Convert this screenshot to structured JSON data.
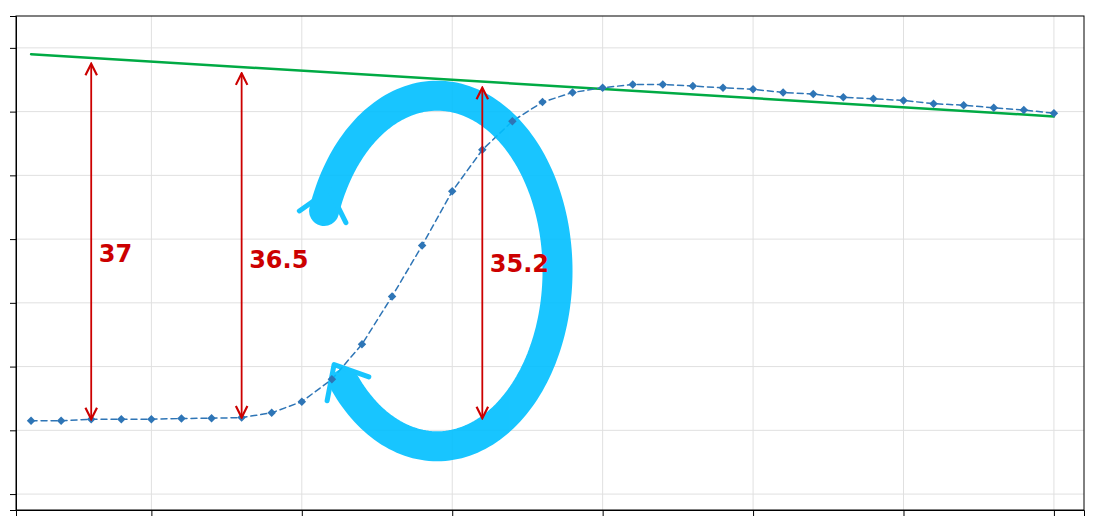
{
  "chart_data": {
    "type": "line",
    "xlim": [
      0.5,
      36.0
    ],
    "ylim": [
      -2.5,
      13.0
    ],
    "xticks": [
      5,
      10,
      15,
      20,
      25,
      30,
      35
    ],
    "yticks": [
      -2,
      0,
      2,
      4,
      6,
      8,
      10,
      12
    ],
    "grid": true,
    "tick_labels": false,
    "series": [
      {
        "x": [
          1,
          35
        ],
        "values": [
          11.8,
          9.85
        ],
        "color": "#00aa44",
        "line_style": "solid",
        "marker": "none"
      },
      {
        "x": [
          1,
          2,
          3,
          4,
          5,
          6,
          7,
          8,
          9,
          10,
          11,
          12,
          13,
          14,
          15,
          16,
          17,
          18,
          19,
          20,
          21,
          22,
          23,
          24,
          25,
          26,
          27,
          28,
          29,
          30,
          31,
          32,
          33,
          34,
          35
        ],
        "values": [
          0.3,
          0.3,
          0.35,
          0.35,
          0.35,
          0.37,
          0.38,
          0.4,
          0.55,
          0.9,
          1.6,
          2.7,
          4.2,
          5.8,
          7.5,
          8.8,
          9.7,
          10.3,
          10.6,
          10.75,
          10.85,
          10.85,
          10.8,
          10.75,
          10.7,
          10.6,
          10.55,
          10.45,
          10.4,
          10.35,
          10.25,
          10.2,
          10.12,
          10.05,
          9.95
        ],
        "color": "#2e75b6",
        "line_style": "dashed",
        "marker": "diamond"
      }
    ],
    "annotations": [
      {
        "text": "37",
        "x": 3,
        "y_top": 11.5,
        "y_bottom": 0.35,
        "label_x": 3.25,
        "label_y": 5.5,
        "color": "#cc0000"
      },
      {
        "text": "36.5",
        "x": 8,
        "y_top": 11.2,
        "y_bottom": 0.4,
        "label_x": 8.25,
        "label_y": 5.3,
        "color": "#cc0000"
      },
      {
        "text": "35.2",
        "x": 16,
        "y_top": 10.75,
        "y_bottom": 0.38,
        "label_x": 16.25,
        "label_y": 5.2,
        "color": "#cc0000"
      }
    ],
    "arc": {
      "cx": 14.5,
      "cy": 5.0,
      "width": 8.0,
      "height": 11.0,
      "theta1": 220,
      "theta2": 160,
      "color": "#00bfff"
    }
  }
}
